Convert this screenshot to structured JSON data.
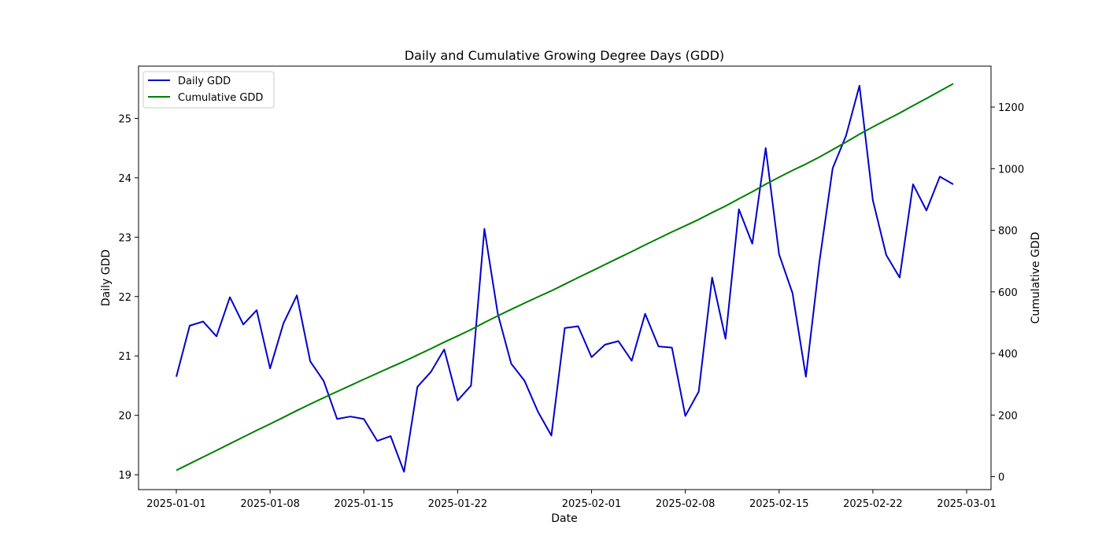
{
  "chart_data": {
    "type": "line",
    "title": "Daily and Cumulative Growing Degree Days (GDD)",
    "xlabel": "Date",
    "ylabel_left": "Daily GDD",
    "ylabel_right": "Cumulative GDD",
    "x_start": "2025-01-01",
    "x_ticks": [
      "2025-01-01",
      "2025-01-08",
      "2025-01-15",
      "2025-01-22",
      "2025-02-01",
      "2025-02-08",
      "2025-02-15",
      "2025-02-22",
      "2025-03-01"
    ],
    "y_left_ticks": [
      19,
      20,
      21,
      22,
      23,
      24,
      25
    ],
    "y_right_ticks": [
      0,
      200,
      400,
      600,
      800,
      1000,
      1200
    ],
    "y_left_lim": [
      18.75,
      25.88
    ],
    "y_right_lim": [
      -42,
      1333
    ],
    "legend_position": "upper-left",
    "grid": false,
    "series": [
      {
        "name": "Daily GDD",
        "axis": "left",
        "color": "#0000cc",
        "values": [
          20.65,
          21.51,
          21.58,
          21.33,
          21.99,
          21.53,
          21.77,
          20.79,
          21.55,
          22.02,
          20.91,
          20.58,
          19.94,
          19.98,
          19.94,
          19.57,
          19.65,
          19.05,
          20.48,
          20.73,
          21.11,
          20.25,
          20.5,
          23.14,
          21.71,
          20.87,
          20.58,
          20.06,
          19.66,
          21.47,
          21.5,
          20.98,
          21.19,
          21.25,
          20.92,
          21.71,
          21.16,
          21.14,
          19.99,
          20.4,
          22.32,
          21.29,
          23.47,
          22.89,
          24.5,
          22.71,
          22.06,
          20.65,
          22.57,
          24.16,
          24.71,
          25.55,
          23.62,
          22.7,
          22.32,
          23.89,
          23.45,
          24.02,
          23.89
        ]
      },
      {
        "name": "Cumulative GDD",
        "axis": "right",
        "color": "#008000",
        "values": [
          20.65,
          42.16,
          63.74,
          85.07,
          107.06,
          128.59,
          150.36,
          171.15,
          192.7,
          214.72,
          235.63,
          256.21,
          276.15,
          296.13,
          316.07,
          335.64,
          355.29,
          374.34,
          394.82,
          415.55,
          436.66,
          456.91,
          477.41,
          500.55,
          522.26,
          543.13,
          563.71,
          583.77,
          603.43,
          624.9,
          646.4,
          667.38,
          688.57,
          709.82,
          730.74,
          752.45,
          773.61,
          794.75,
          814.74,
          835.14,
          857.46,
          878.75,
          902.22,
          925.11,
          949.61,
          972.32,
          994.38,
          1015.03,
          1037.6,
          1061.76,
          1086.47,
          1112.02,
          1135.64,
          1158.34,
          1180.66,
          1204.55,
          1228.0,
          1252.02,
          1275.91
        ]
      }
    ]
  }
}
